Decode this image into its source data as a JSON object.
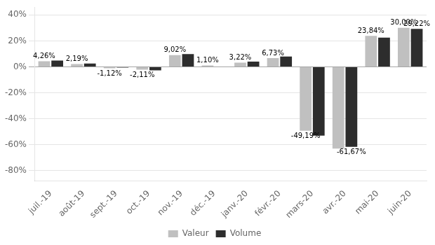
{
  "chart_data": {
    "type": "bar",
    "categories": [
      "juil.-19",
      "août-19",
      "sept.-19",
      "oct.-19",
      "nov.-19",
      "déc.-19",
      "janv.-20",
      "févr.-20",
      "mars-20",
      "avr.-20",
      "mai-20",
      "juin-20"
    ],
    "series": [
      {
        "name": "Valeur",
        "color": "#c0c0c0",
        "values": [
          4.26,
          2.19,
          -1.12,
          -2.11,
          9.02,
          1.1,
          3.22,
          6.73,
          -49.19,
          -63.0,
          23.84,
          30.0
        ],
        "value_labels": [
          "4,26%",
          "2,19%",
          "-1,12%",
          "-2,11%",
          "9,02%",
          "1,10%",
          "3,22%",
          "6,73%",
          "-49,19%",
          null,
          "23,84%",
          "30,00%"
        ]
      },
      {
        "name": "Volume",
        "color": "#2d2d2d",
        "values": [
          4.8,
          2.6,
          -0.5,
          -2.7,
          9.8,
          0.3,
          4.0,
          8.0,
          -53.0,
          -61.67,
          22.5,
          29.22
        ],
        "value_labels": [
          null,
          null,
          null,
          null,
          null,
          null,
          null,
          null,
          null,
          "-61,67%",
          null,
          "29,22%"
        ]
      }
    ],
    "ylim": [
      -88,
      46
    ],
    "yticks": [
      {
        "value": -80,
        "label": "-80%"
      },
      {
        "value": -60,
        "label": "-60%"
      },
      {
        "value": -40,
        "label": "-40%"
      },
      {
        "value": -20,
        "label": "-20%"
      },
      {
        "value": 0,
        "label": "0%"
      },
      {
        "value": 20,
        "label": "20%"
      },
      {
        "value": 40,
        "label": "40%"
      }
    ],
    "grid": true,
    "legend": "bottom",
    "data_labels": true
  }
}
